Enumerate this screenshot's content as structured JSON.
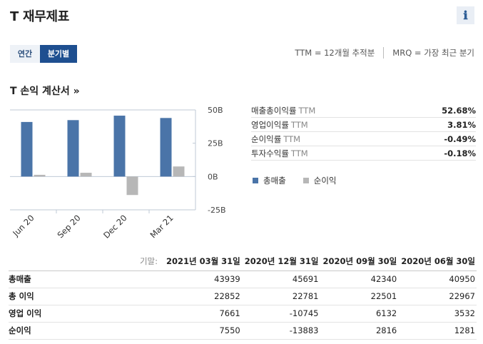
{
  "header": {
    "title": "T 재무제표",
    "info_icon": "ℹ"
  },
  "tabs": [
    {
      "label": "연간",
      "active": false
    },
    {
      "label": "분기별",
      "active": true
    }
  ],
  "legend_top": {
    "ttm": "TTM = 12개월 추적분",
    "mrq": "MRQ = 가장 최근 분기"
  },
  "section": {
    "title": "T 손익 계산서 »"
  },
  "chart_data": {
    "type": "bar",
    "categories": [
      "Jun 20",
      "Sep 20",
      "Dec 20",
      "Mar 21"
    ],
    "series": [
      {
        "name": "총매출",
        "color": "#4a74a8",
        "values": [
          40.95,
          42.34,
          45.69,
          43.94
        ]
      },
      {
        "name": "순이익",
        "color": "#b7b7b7",
        "values": [
          1.28,
          2.82,
          -13.88,
          7.55
        ]
      }
    ],
    "ylim": [
      -25,
      50
    ],
    "yticks": [
      50,
      25,
      0,
      -25
    ],
    "ytick_labels": [
      "50B",
      "25B",
      "0B",
      "-25B"
    ],
    "grid": false,
    "legend_position": "below-right"
  },
  "ratios": [
    {
      "label": "매출총이익률",
      "suffix": "TTM",
      "value": "52.68%"
    },
    {
      "label": "영업이익률",
      "suffix": "TTM",
      "value": "3.81%"
    },
    {
      "label": "순이익률",
      "suffix": "TTM",
      "value": "-0.49%"
    },
    {
      "label": "투자수익률",
      "suffix": "TTM",
      "value": "-0.18%"
    }
  ],
  "chart_legend": [
    {
      "label": "총매출",
      "color": "#4a74a8"
    },
    {
      "label": "순이익",
      "color": "#b7b7b7"
    }
  ],
  "table": {
    "head_label": "기말:",
    "columns": [
      "2021년 03월 31일",
      "2020년 12월 31일",
      "2020년 09월 30일",
      "2020년 06월 30일"
    ],
    "rows": [
      {
        "label": "총매출",
        "values": [
          "43939",
          "45691",
          "42340",
          "40950"
        ]
      },
      {
        "label": "총 이익",
        "values": [
          "22852",
          "22781",
          "22501",
          "22967"
        ]
      },
      {
        "label": "영업 이익",
        "values": [
          "7661",
          "-10745",
          "6132",
          "3532"
        ]
      },
      {
        "label": "순이익",
        "values": [
          "7550",
          "-13883",
          "2816",
          "1281"
        ]
      }
    ]
  }
}
